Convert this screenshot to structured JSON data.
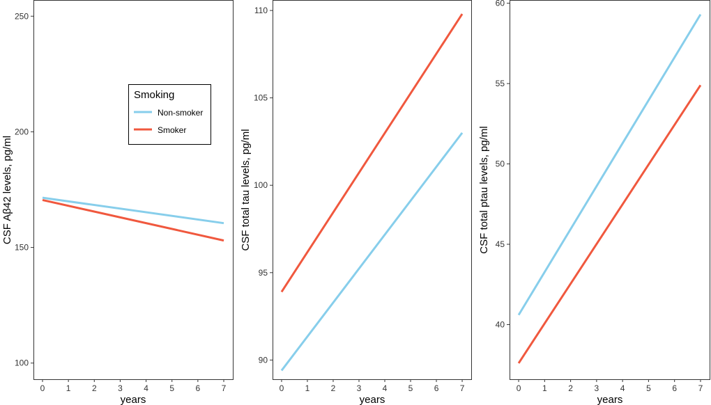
{
  "chart_data": [
    {
      "type": "line",
      "xlabel": "years",
      "ylabel": "CSF Aβ42 levels, pg/ml",
      "xlim": [
        -0.35,
        7.35
      ],
      "ylim": [
        93,
        257
      ],
      "xticks": [
        0,
        1,
        2,
        3,
        4,
        5,
        6,
        7
      ],
      "yticks": [
        100,
        150,
        200,
        250
      ],
      "series": [
        {
          "name": "Non-smoker",
          "x": [
            0,
            7
          ],
          "y": [
            171.5,
            160.5
          ]
        },
        {
          "name": "Smoker",
          "x": [
            0,
            7
          ],
          "y": [
            170.5,
            153
          ]
        }
      ]
    },
    {
      "type": "line",
      "xlabel": "years",
      "ylabel": "CSF total tau levels, pg/ml",
      "xlim": [
        -0.35,
        7.35
      ],
      "ylim": [
        88.9,
        110.6
      ],
      "xticks": [
        0,
        1,
        2,
        3,
        4,
        5,
        6,
        7
      ],
      "yticks": [
        90,
        95,
        100,
        105,
        110
      ],
      "series": [
        {
          "name": "Non-smoker",
          "x": [
            0,
            7
          ],
          "y": [
            89.4,
            103
          ]
        },
        {
          "name": "Smoker",
          "x": [
            0,
            7
          ],
          "y": [
            93.9,
            109.8
          ]
        }
      ]
    },
    {
      "type": "line",
      "xlabel": "years",
      "ylabel": "CSF total ptau levels, pg/ml",
      "xlim": [
        -0.35,
        7.35
      ],
      "ylim": [
        36.6,
        60.2
      ],
      "xticks": [
        0,
        1,
        2,
        3,
        4,
        5,
        6,
        7
      ],
      "yticks": [
        40,
        45,
        50,
        55,
        60
      ],
      "series": [
        {
          "name": "Non-smoker",
          "x": [
            0,
            7
          ],
          "y": [
            40.6,
            59.3
          ]
        },
        {
          "name": "Smoker",
          "x": [
            0,
            7
          ],
          "y": [
            37.6,
            54.9
          ]
        }
      ]
    }
  ],
  "legend": {
    "title": "Smoking",
    "placement": "top-right of first panel",
    "items": [
      {
        "label": "Non-smoker",
        "color": "#87CEEB"
      },
      {
        "label": "Smoker",
        "color": "#F0583E"
      }
    ]
  },
  "colors": {
    "Non-smoker": "#87CEEB",
    "Smoker": "#F0583E"
  }
}
